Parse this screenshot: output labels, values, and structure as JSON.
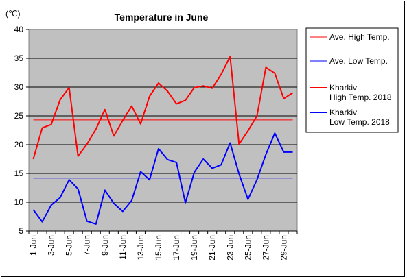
{
  "chart_data": {
    "type": "line",
    "title": "Temperature in June",
    "unit_label": "(℃)",
    "ylim": [
      5,
      40
    ],
    "yticks": [
      5,
      10,
      15,
      20,
      25,
      30,
      35,
      40
    ],
    "grid": "horizontal",
    "legend_position": "right",
    "x": [
      "1-Jun",
      "2-Jun",
      "3-Jun",
      "4-Jun",
      "5-Jun",
      "6-Jun",
      "7-Jun",
      "8-Jun",
      "9-Jun",
      "10-Jun",
      "11-Jun",
      "12-Jun",
      "13-Jun",
      "14-Jun",
      "15-Jun",
      "16-Jun",
      "17-Jun",
      "18-Jun",
      "19-Jun",
      "20-Jun",
      "21-Jun",
      "22-Jun",
      "23-Jun",
      "24-Jun",
      "25-Jun",
      "26-Jun",
      "27-Jun",
      "28-Jun",
      "29-Jun",
      "30-Jun"
    ],
    "x_tick_labels": [
      "1-Jun",
      "3-Jun",
      "5-Jun",
      "7-Jun",
      "9-Jun",
      "11-Jun",
      "13-Jun",
      "15-Jun",
      "17-Jun",
      "19-Jun",
      "21-Jun",
      "23-Jun",
      "25-Jun",
      "27-Jun",
      "29-Jun"
    ],
    "series": [
      {
        "name": "Ave. High Temp.",
        "color": "#ff0000",
        "width": 1,
        "values": [
          24.3,
          24.3,
          24.3,
          24.3,
          24.3,
          24.3,
          24.3,
          24.3,
          24.3,
          24.3,
          24.3,
          24.3,
          24.3,
          24.3,
          24.3,
          24.3,
          24.3,
          24.3,
          24.3,
          24.3,
          24.3,
          24.3,
          24.3,
          24.3,
          24.3,
          24.3,
          24.3,
          24.3,
          24.3,
          24.3
        ]
      },
      {
        "name": "Ave. Low Temp.",
        "color": "#0000ff",
        "width": 1,
        "values": [
          14.2,
          14.2,
          14.2,
          14.2,
          14.2,
          14.2,
          14.2,
          14.2,
          14.2,
          14.2,
          14.2,
          14.2,
          14.2,
          14.2,
          14.2,
          14.2,
          14.2,
          14.2,
          14.2,
          14.2,
          14.2,
          14.2,
          14.2,
          14.2,
          14.2,
          14.2,
          14.2,
          14.2,
          14.2,
          14.2
        ]
      },
      {
        "name": "Kharkiv High Temp. 2018",
        "legend_lines": [
          "Kharkiv",
          "High Temp. 2018"
        ],
        "color": "#ff0000",
        "width": 2,
        "values": [
          17.5,
          22.9,
          23.5,
          27.8,
          29.9,
          18.0,
          20.1,
          22.7,
          26.1,
          21.5,
          24.2,
          26.7,
          23.6,
          28.4,
          30.7,
          29.3,
          27.1,
          27.7,
          29.9,
          30.2,
          29.8,
          32.2,
          35.3,
          20.1,
          22.4,
          25.0,
          33.4,
          32.4,
          28.0,
          29.0
        ]
      },
      {
        "name": "Kharkiv Low Temp. 2018",
        "legend_lines": [
          "Kharkiv",
          "Low Temp. 2018"
        ],
        "color": "#0000ff",
        "width": 2,
        "values": [
          8.7,
          6.6,
          9.5,
          10.8,
          13.9,
          12.3,
          6.7,
          6.2,
          12.1,
          9.8,
          8.4,
          10.3,
          15.3,
          13.9,
          19.3,
          17.4,
          16.9,
          9.9,
          15.2,
          17.5,
          15.9,
          16.5,
          20.3,
          14.9,
          10.5,
          13.9,
          18.3,
          22.0,
          18.7,
          18.7
        ]
      }
    ]
  }
}
